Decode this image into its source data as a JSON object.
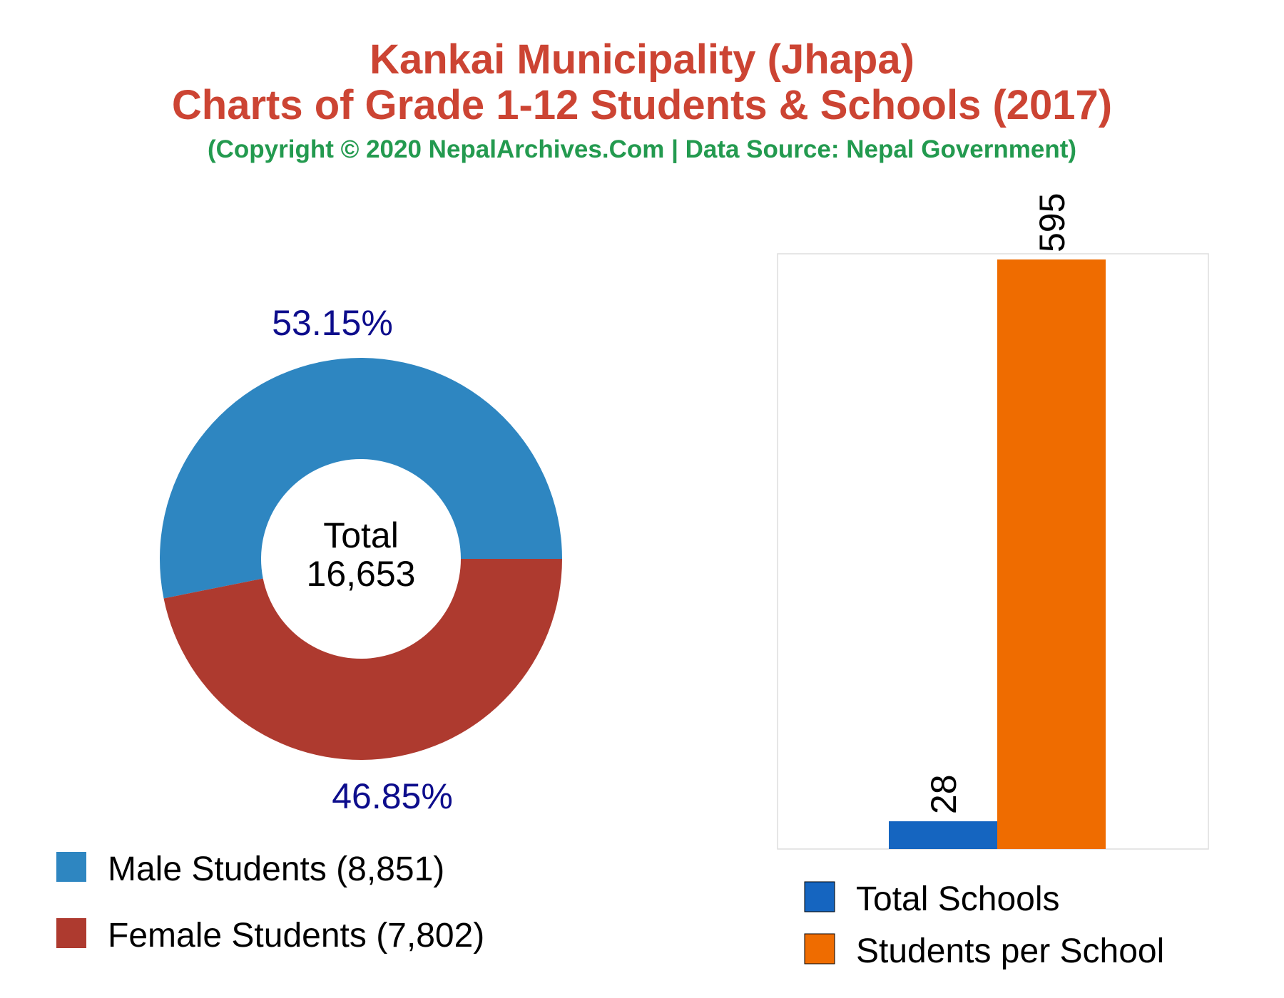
{
  "header": {
    "title_line1": "Kankai Municipality (Jhapa)",
    "title_line2": "Charts of Grade 1-12 Students & Schools (2017)",
    "subtitle": "(Copyright © 2020 NepalArchives.Com | Data Source: Nepal Government)"
  },
  "colors": {
    "title": "#cc4433",
    "subtitle": "#239a4f",
    "percent_label": "#0d0d8c",
    "male": "#2e86c1",
    "female": "#ae3a2f",
    "schools": "#1565c0",
    "per_school": "#ef6c00"
  },
  "chart_data": [
    {
      "type": "pie",
      "variant": "donut",
      "center_label": {
        "line1": "Total",
        "line2": "16,653"
      },
      "slices": [
        {
          "label": "Male Students (8,851)",
          "value": 8851,
          "percent_label": "53.15%",
          "color": "#2e86c1"
        },
        {
          "label": "Female Students (7,802)",
          "value": 7802,
          "percent_label": "46.85%",
          "color": "#ae3a2f"
        }
      ],
      "legend_position": "bottom-left"
    },
    {
      "type": "bar",
      "series": [
        {
          "name": "Total Schools",
          "value": 28,
          "value_label": "28",
          "color": "#1565c0"
        },
        {
          "name": "Students per School",
          "value": 595,
          "value_label": "595",
          "color": "#ef6c00"
        }
      ],
      "ylim": [
        0,
        595
      ],
      "grid": false,
      "legend_position": "bottom"
    }
  ]
}
